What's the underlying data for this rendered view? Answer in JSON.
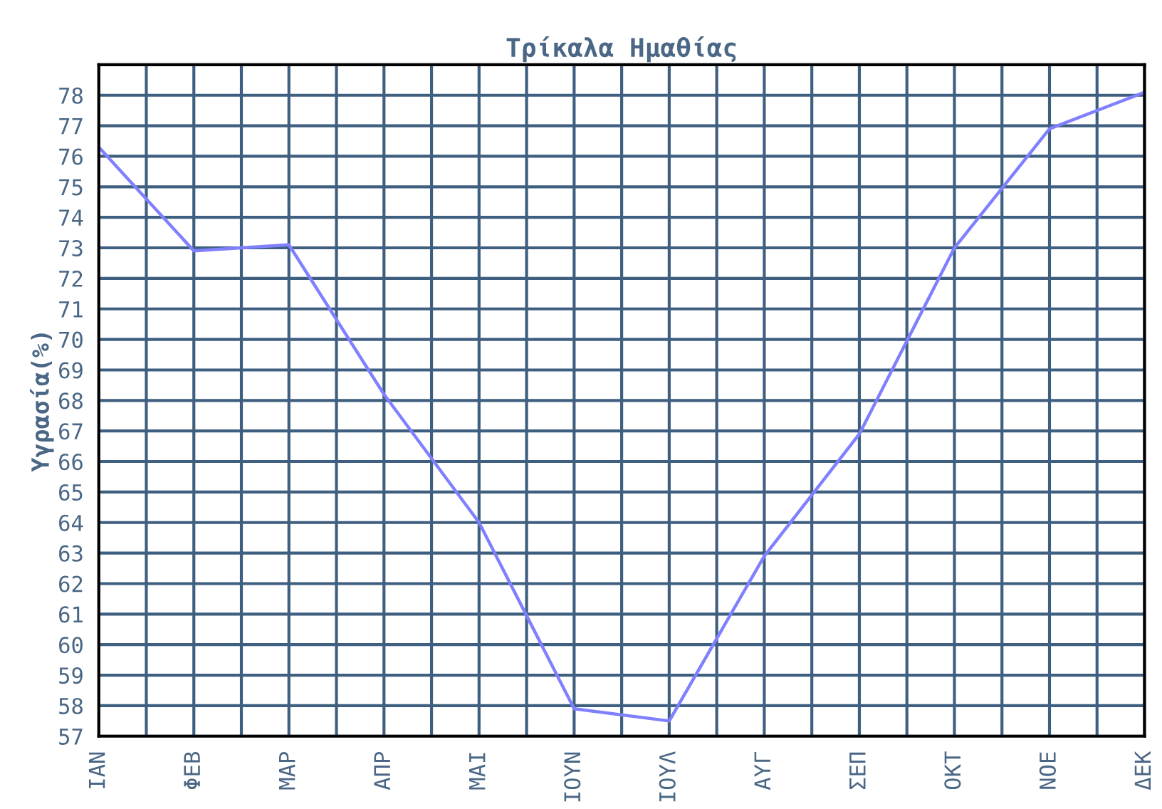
{
  "chart_data": {
    "type": "line",
    "title": "Τρίκαλα Ημαθίας",
    "ylabel": "Υγρασία(%)",
    "categories": [
      "ΙΑΝ",
      "ΦΕΒ",
      "ΜΑΡ",
      "ΑΠΡ",
      "ΜΑΙ",
      "ΙΟΥΝ",
      "ΙΟΥΛ",
      "ΑΥΓ",
      "ΣΕΠ",
      "ΟΚΤ",
      "ΝΟΕ",
      "ΔΕΚ"
    ],
    "series": [
      {
        "color": "#8080ff",
        "values": [
          76.3,
          72.9,
          73.1,
          68.2,
          64.0,
          57.9,
          57.5,
          62.9,
          66.9,
          73.0,
          76.9,
          78.1
        ]
      }
    ],
    "ylim": [
      57,
      79
    ],
    "yticks": [
      57,
      58,
      59,
      60,
      61,
      62,
      63,
      64,
      65,
      66,
      67,
      68,
      69,
      70,
      71,
      72,
      73,
      74,
      75,
      76,
      77,
      78
    ],
    "grid": true,
    "marker": "none",
    "line_style": "solid"
  }
}
